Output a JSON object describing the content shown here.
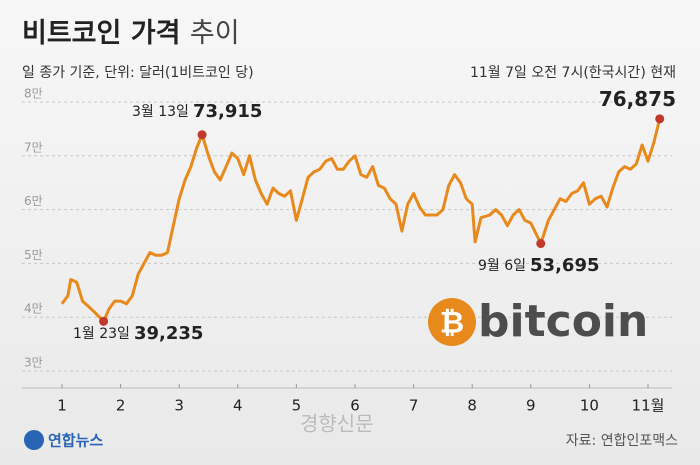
{
  "chart_data": {
    "type": "line",
    "title": [
      "비트코인 가격",
      "추이"
    ],
    "subtitle": "일 종가 기준, 단위: 달러(1비트코인 당)",
    "source": "자료: 연합인포맥스",
    "agency": "연합뉴스",
    "watermark": "경향신문",
    "logo_symbol": "₿",
    "logo_text": "bitcoin",
    "current_note": "11월 7일 오전 7시(한국시간) 현재",
    "series": [
      {
        "name": "비트코인",
        "color": "#e8891c",
        "x": [
          1.0,
          1.1,
          1.15,
          1.25,
          1.35,
          1.45,
          1.55,
          1.71,
          1.8,
          1.9,
          2.0,
          2.1,
          2.2,
          2.3,
          2.4,
          2.5,
          2.6,
          2.7,
          2.8,
          2.9,
          3.0,
          3.1,
          3.2,
          3.3,
          3.39,
          3.5,
          3.6,
          3.7,
          3.8,
          3.9,
          4.0,
          4.1,
          4.2,
          4.3,
          4.4,
          4.5,
          4.6,
          4.7,
          4.8,
          4.9,
          5.0,
          5.1,
          5.2,
          5.3,
          5.4,
          5.5,
          5.6,
          5.7,
          5.8,
          5.9,
          6.0,
          6.1,
          6.2,
          6.3,
          6.4,
          6.5,
          6.6,
          6.7,
          6.8,
          6.9,
          7.0,
          7.1,
          7.2,
          7.4,
          7.5,
          7.6,
          7.7,
          7.8,
          7.9,
          8.0,
          8.05,
          8.15,
          8.3,
          8.4,
          8.5,
          8.6,
          8.7,
          8.8,
          8.9,
          9.0,
          9.17,
          9.3,
          9.5,
          9.6,
          9.7,
          9.8,
          9.9,
          10.0,
          10.1,
          10.2,
          10.3,
          10.4,
          10.5,
          10.6,
          10.7,
          10.8,
          10.9,
          11.0,
          11.1,
          11.2
        ],
        "values": [
          42500,
          44000,
          47000,
          46500,
          43000,
          42000,
          41000,
          39235,
          41500,
          43000,
          43000,
          42500,
          44000,
          48000,
          50000,
          52000,
          51500,
          51500,
          52000,
          57000,
          62000,
          65500,
          68000,
          71500,
          73915,
          70000,
          67000,
          65500,
          68000,
          70500,
          69500,
          66500,
          70000,
          65500,
          63000,
          61000,
          64000,
          63000,
          62500,
          63500,
          58000,
          62000,
          66000,
          67000,
          67500,
          69000,
          69500,
          67500,
          67500,
          69000,
          70000,
          66500,
          66000,
          68000,
          64500,
          64000,
          62000,
          61000,
          56000,
          61000,
          63000,
          60500,
          59000,
          59000,
          60000,
          64500,
          66500,
          65000,
          62000,
          61000,
          54000,
          58500,
          59000,
          60000,
          59000,
          57000,
          59000,
          60000,
          58000,
          57500,
          53695,
          58000,
          62000,
          61500,
          63000,
          63500,
          65000,
          61000,
          62000,
          62500,
          60500,
          64000,
          67000,
          68000,
          67500,
          68500,
          72000,
          69000,
          72500,
          76875
        ]
      }
    ],
    "annotations": [
      {
        "text": "1월 23일",
        "x": 1.71,
        "value": 39235,
        "value_label": "39,235"
      },
      {
        "text": "3월 13일",
        "x": 3.39,
        "value": 73915,
        "value_label": "73,915"
      },
      {
        "text": "9월 6일",
        "x": 9.17,
        "value": 53695,
        "value_label": "53,695"
      },
      {
        "x": 11.2,
        "value": 76875,
        "value_label": "76,875"
      }
    ],
    "marker_color": "#c0392b",
    "xlim": [
      1,
      11
    ],
    "xticks": [
      1,
      2,
      3,
      4,
      5,
      6,
      7,
      8,
      9,
      10,
      {
        "value": 11,
        "label": "11월"
      }
    ],
    "ylim": [
      30000,
      80000
    ],
    "yticks": [
      {
        "value": 30000,
        "label": "3만"
      },
      {
        "value": 40000,
        "label": "4만"
      },
      {
        "value": 50000,
        "label": "5만"
      },
      {
        "value": 60000,
        "label": "6만"
      },
      {
        "value": 70000,
        "label": "7만"
      },
      {
        "value": 80000,
        "label": "8만"
      }
    ],
    "grid": true
  }
}
